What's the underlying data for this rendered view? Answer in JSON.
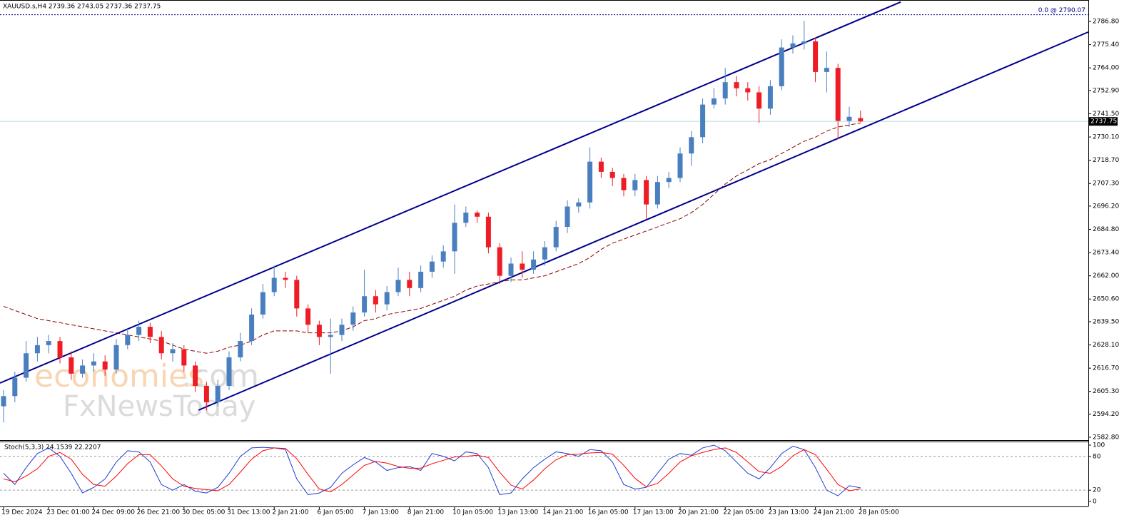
{
  "chart_data": [
    {
      "type": "candlestick",
      "title": "XAUUSD.s,H4  2739.36 2743.05 2737.36 2737.75",
      "watermark": {
        "brand": "economies",
        "suffix": ".com",
        "second": "FxNewsToday"
      },
      "categories": [
        "19 Dec 2024",
        null,
        null,
        null,
        "23 Dec 01:00",
        null,
        null,
        null,
        "24 Dec 09:00",
        null,
        null,
        null,
        "26 Dec 21:00",
        null,
        null,
        null,
        "30 Dec 05:00",
        null,
        null,
        null,
        "31 Dec 13:00",
        null,
        null,
        null,
        "2 Jan 21:00",
        null,
        null,
        null,
        "6 Jan 05:00",
        null,
        null,
        null,
        "7 Jan 13:00",
        null,
        null,
        null,
        "8 Jan 21:00",
        null,
        null,
        null,
        "10 Jan 05:00",
        null,
        null,
        null,
        "13 Jan 13:00",
        null,
        null,
        null,
        "14 Jan 21:00",
        null,
        null,
        null,
        "16 Jan 05:00",
        null,
        null,
        null,
        "17 Jan 13:00",
        null,
        null,
        null,
        "20 Jan 21:00",
        null,
        null,
        null,
        "22 Jan 05:00",
        null,
        null,
        null,
        "23 Jan 13:00",
        null,
        null,
        null,
        "24 Jan 21:00",
        null,
        null,
        null,
        "28 Jan 05:00"
      ],
      "open": [
        2598,
        2603,
        2612,
        2624,
        2628,
        2630,
        2622,
        2614,
        2618,
        2620,
        2616,
        2628,
        2633,
        2637,
        2632,
        2624,
        2626,
        2618,
        2608,
        2600,
        2608,
        2622,
        2630,
        2643,
        2654,
        2661,
        2660,
        2646,
        2638,
        2632,
        2633,
        2638,
        2644,
        2652,
        2648,
        2654,
        2660,
        2656,
        2664,
        2669,
        2674,
        2688,
        2693,
        2691,
        2676,
        2662,
        2668,
        2665,
        2670,
        2676,
        2686,
        2696,
        2698,
        2718,
        2713,
        2710,
        2704,
        2709,
        2697,
        2708,
        2710,
        2722,
        2730,
        2746,
        2749,
        2757,
        2754,
        2752,
        2744,
        2755,
        2774,
        2776,
        2777,
        2762,
        2764,
        2738,
        2739.36
      ],
      "high": [
        2606,
        2615,
        2630,
        2632,
        2633,
        2632,
        2625,
        2621,
        2624,
        2623,
        2631,
        2636,
        2640,
        2639,
        2635,
        2629,
        2628,
        2620,
        2610,
        2611,
        2625,
        2634,
        2646,
        2658,
        2667,
        2664,
        2662,
        2648,
        2640,
        2641,
        2641,
        2647,
        2665,
        2655,
        2657,
        2666,
        2664,
        2667,
        2672,
        2677,
        2697,
        2696,
        2694,
        2693,
        2678,
        2671,
        2674,
        2674,
        2679,
        2689,
        2699,
        2700,
        2725,
        2720,
        2715,
        2712,
        2712,
        2711,
        2711,
        2713,
        2725,
        2733,
        2749,
        2754,
        2764,
        2760,
        2757,
        2755,
        2758,
        2778,
        2780,
        2787,
        2779,
        2772,
        2766,
        2745,
        2743.05
      ],
      "low": [
        2590,
        2600,
        2610,
        2620,
        2624,
        2619,
        2611,
        2612,
        2615,
        2613,
        2614,
        2626,
        2630,
        2629,
        2621,
        2620,
        2615,
        2605,
        2596,
        2598,
        2606,
        2620,
        2628,
        2641,
        2652,
        2656,
        2642,
        2634,
        2628,
        2614,
        2630,
        2635,
        2642,
        2644,
        2645,
        2652,
        2652,
        2654,
        2661,
        2666,
        2663,
        2686,
        2688,
        2673,
        2658,
        2659,
        2661,
        2663,
        2667,
        2674,
        2683,
        2693,
        2695,
        2710,
        2706,
        2701,
        2701,
        2690,
        2695,
        2705,
        2708,
        2716,
        2727,
        2744,
        2746,
        2750,
        2748,
        2737,
        2741,
        2753,
        2771,
        2773,
        2757,
        2752,
        2729,
        2735,
        2737.36
      ],
      "close": [
        2603,
        2612,
        2624,
        2628,
        2630,
        2622,
        2614,
        2618,
        2620,
        2616,
        2628,
        2633,
        2637,
        2632,
        2624,
        2626,
        2618,
        2608,
        2600,
        2608,
        2622,
        2630,
        2643,
        2654,
        2661,
        2660,
        2646,
        2638,
        2632,
        2633,
        2638,
        2644,
        2652,
        2648,
        2654,
        2660,
        2656,
        2664,
        2669,
        2674,
        2688,
        2693,
        2691,
        2676,
        2662,
        2668,
        2665,
        2670,
        2676,
        2686,
        2696,
        2698,
        2718,
        2713,
        2710,
        2704,
        2709,
        2697,
        2708,
        2710,
        2722,
        2730,
        2746,
        2749,
        2757,
        2754,
        2752,
        2744,
        2755,
        2774,
        2776,
        2777,
        2762,
        2764,
        2738,
        2740,
        2737.75
      ],
      "up_color": "#4a7fbf",
      "down_color": "#ee1c25",
      "ma": {
        "color": "#8b0000",
        "values": [
          2647,
          2645,
          2643,
          2641,
          2640,
          2639,
          2638,
          2637,
          2636,
          2635,
          2634,
          2633,
          2632,
          2631,
          2630,
          2628,
          2626,
          2625,
          2624,
          2625,
          2627,
          2628,
          2630,
          2633,
          2635,
          2635,
          2635,
          2634,
          2634,
          2634,
          2635,
          2637,
          2640,
          2641,
          2643,
          2644,
          2645,
          2646,
          2648,
          2650,
          2652,
          2655,
          2657,
          2658,
          2659,
          2660,
          2660,
          2661,
          2662,
          2664,
          2666,
          2668,
          2671,
          2675,
          2678,
          2680,
          2682,
          2684,
          2686,
          2688,
          2690,
          2693,
          2697,
          2702,
          2707,
          2711,
          2714,
          2717,
          2719,
          2722,
          2725,
          2728,
          2730,
          2733,
          2735,
          2736,
          2737
        ]
      },
      "trendlines": [
        {
          "color": "#00008b",
          "x": [
            -0.32,
            79.56
          ],
          "y": [
            2609.4,
            2796.3
          ]
        },
        {
          "color": "#00008b",
          "x": [
            17.28,
            96.2
          ],
          "y": [
            2596.1,
            2781.6
          ]
        }
      ],
      "hline": {
        "value": 2790.07,
        "label": "0.0 @ 2790.07",
        "color": "#00008b"
      },
      "last_price": 2737.75,
      "ylim": [
        2581.4,
        2797.3
      ],
      "yticks": [
        {
          "value": 2786.8,
          "label": "2786.80"
        },
        {
          "value": 2775.4,
          "label": "2775.40"
        },
        {
          "value": 2764,
          "label": "2764.00"
        },
        {
          "value": 2752.9,
          "label": "2752.90"
        },
        {
          "value": 2741.5,
          "label": "2741.50"
        },
        {
          "value": 2730.1,
          "label": "2730.10"
        },
        {
          "value": 2718.7,
          "label": "2718.70"
        },
        {
          "value": 2707.3,
          "label": "2707.30"
        },
        {
          "value": 2696.2,
          "label": "2696.20"
        },
        {
          "value": 2684.8,
          "label": "2684.80"
        },
        {
          "value": 2673.4,
          "label": "2673.40"
        },
        {
          "value": 2662,
          "label": "2662.00"
        },
        {
          "value": 2650.6,
          "label": "2650.60"
        },
        {
          "value": 2639.5,
          "label": "2639.50"
        },
        {
          "value": 2628.1,
          "label": "2628.10"
        },
        {
          "value": 2616.7,
          "label": "2616.70"
        },
        {
          "value": 2605.3,
          "label": "2605.30"
        },
        {
          "value": 2594.2,
          "label": "2594.20"
        },
        {
          "value": 2582.8,
          "label": "2582.80"
        }
      ]
    },
    {
      "type": "line",
      "title": "Stoch(5,3,3) 24.1539 22.2207",
      "series": [
        {
          "color": "#1e3cd2",
          "values": [
            50,
            30,
            60,
            85,
            95,
            80,
            50,
            15,
            25,
            40,
            70,
            90,
            88,
            70,
            30,
            20,
            30,
            18,
            15,
            25,
            50,
            80,
            95,
            96,
            95,
            92,
            40,
            12,
            15,
            25,
            50,
            65,
            78,
            70,
            55,
            60,
            62,
            55,
            85,
            80,
            72,
            88,
            85,
            60,
            12,
            15,
            40,
            60,
            75,
            88,
            85,
            80,
            92,
            90,
            70,
            30,
            22,
            25,
            50,
            75,
            85,
            82,
            95,
            100,
            90,
            70,
            50,
            40,
            60,
            85,
            98,
            92,
            60,
            20,
            10,
            28,
            24.1539
          ]
        },
        {
          "color": "#ff0000",
          "values": [
            40,
            35,
            45,
            58,
            80,
            87,
            75,
            48,
            30,
            27,
            45,
            67,
            83,
            83,
            63,
            40,
            27,
            23,
            21,
            19,
            30,
            52,
            75,
            90,
            95,
            94,
            76,
            48,
            22,
            17,
            30,
            47,
            64,
            71,
            68,
            62,
            59,
            59,
            67,
            73,
            79,
            80,
            82,
            78,
            52,
            29,
            22,
            38,
            58,
            74,
            83,
            84,
            86,
            87,
            84,
            64,
            41,
            26,
            32,
            50,
            70,
            81,
            87,
            92,
            95,
            87,
            70,
            53,
            50,
            62,
            81,
            92,
            83,
            57,
            30,
            19,
            22.2207
          ]
        }
      ],
      "levels": [
        20,
        80
      ],
      "ylim": [
        -8.9,
        106.3
      ],
      "yticks": [
        0,
        20,
        80,
        100
      ]
    }
  ]
}
